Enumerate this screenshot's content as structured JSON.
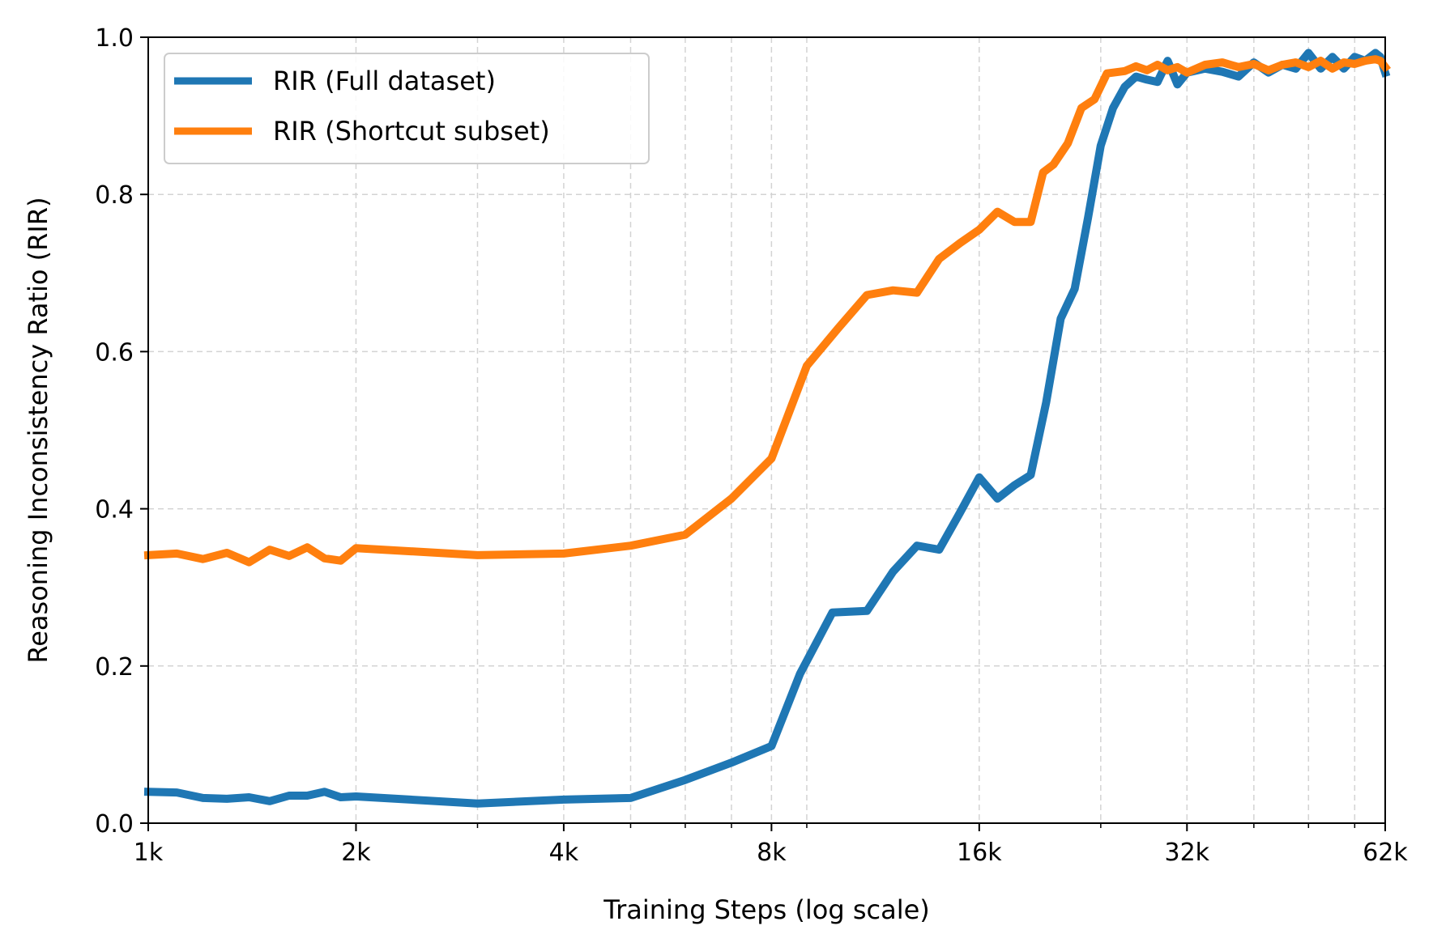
{
  "chart_data": {
    "type": "line",
    "xlabel": "Training Steps (log scale)",
    "ylabel": "Reasoning Inconsistency Ratio (RIR)",
    "x_scale": "log2",
    "xlim": [
      1000,
      62000
    ],
    "ylim": [
      0.0,
      1.0
    ],
    "x_ticks": [
      {
        "value": 1000,
        "label": "1k"
      },
      {
        "value": 2000,
        "label": "2k"
      },
      {
        "value": 4000,
        "label": "4k"
      },
      {
        "value": 8000,
        "label": "8k"
      },
      {
        "value": 16000,
        "label": "16k"
      },
      {
        "value": 32000,
        "label": "32k"
      },
      {
        "value": 62000,
        "label": "62k"
      }
    ],
    "x_minor_gridlines": [
      3000,
      5000,
      6000,
      7000,
      9000,
      24000,
      40000,
      48000,
      56000
    ],
    "y_ticks": [
      {
        "value": 0.0,
        "label": "0.0"
      },
      {
        "value": 0.2,
        "label": "0.2"
      },
      {
        "value": 0.4,
        "label": "0.4"
      },
      {
        "value": 0.6,
        "label": "0.6"
      },
      {
        "value": 0.8,
        "label": "0.8"
      },
      {
        "value": 1.0,
        "label": "1.0"
      }
    ],
    "grid": true,
    "legend_position": "top-left",
    "series": [
      {
        "name": "RIR (Full dataset)",
        "color": "#1f77b4",
        "points": [
          [
            1000,
            0.04
          ],
          [
            1100,
            0.039
          ],
          [
            1200,
            0.032
          ],
          [
            1300,
            0.031
          ],
          [
            1400,
            0.033
          ],
          [
            1500,
            0.028
          ],
          [
            1600,
            0.035
          ],
          [
            1700,
            0.035
          ],
          [
            1800,
            0.04
          ],
          [
            1900,
            0.033
          ],
          [
            2000,
            0.034
          ],
          [
            3000,
            0.025
          ],
          [
            4000,
            0.03
          ],
          [
            5000,
            0.032
          ],
          [
            6000,
            0.055
          ],
          [
            7000,
            0.077
          ],
          [
            8000,
            0.098
          ],
          [
            8800,
            0.19
          ],
          [
            9800,
            0.268
          ],
          [
            11000,
            0.27
          ],
          [
            12000,
            0.32
          ],
          [
            13000,
            0.353
          ],
          [
            14000,
            0.348
          ],
          [
            15000,
            0.395
          ],
          [
            16000,
            0.44
          ],
          [
            17000,
            0.413
          ],
          [
            18000,
            0.43
          ],
          [
            19000,
            0.443
          ],
          [
            20000,
            0.535
          ],
          [
            21000,
            0.642
          ],
          [
            22000,
            0.68
          ],
          [
            23000,
            0.77
          ],
          [
            24000,
            0.862
          ],
          [
            25000,
            0.91
          ],
          [
            26000,
            0.937
          ],
          [
            27000,
            0.95
          ],
          [
            28000,
            0.946
          ],
          [
            29000,
            0.943
          ],
          [
            30000,
            0.97
          ],
          [
            31000,
            0.94
          ],
          [
            32000,
            0.955
          ],
          [
            34000,
            0.96
          ],
          [
            36000,
            0.956
          ],
          [
            38000,
            0.95
          ],
          [
            40000,
            0.968
          ],
          [
            42000,
            0.955
          ],
          [
            44000,
            0.965
          ],
          [
            46000,
            0.96
          ],
          [
            48000,
            0.98
          ],
          [
            50000,
            0.96
          ],
          [
            52000,
            0.975
          ],
          [
            54000,
            0.96
          ],
          [
            56000,
            0.975
          ],
          [
            58000,
            0.97
          ],
          [
            60000,
            0.98
          ],
          [
            61000,
            0.975
          ],
          [
            62000,
            0.955
          ]
        ]
      },
      {
        "name": "RIR (Shortcut subset)",
        "color": "#ff7f0e",
        "points": [
          [
            1000,
            0.341
          ],
          [
            1100,
            0.343
          ],
          [
            1200,
            0.336
          ],
          [
            1300,
            0.344
          ],
          [
            1400,
            0.332
          ],
          [
            1500,
            0.348
          ],
          [
            1600,
            0.34
          ],
          [
            1700,
            0.351
          ],
          [
            1800,
            0.337
          ],
          [
            1900,
            0.334
          ],
          [
            2000,
            0.35
          ],
          [
            3000,
            0.341
          ],
          [
            4000,
            0.343
          ],
          [
            5000,
            0.353
          ],
          [
            6000,
            0.367
          ],
          [
            7000,
            0.413
          ],
          [
            8000,
            0.464
          ],
          [
            9000,
            0.582
          ],
          [
            10000,
            0.63
          ],
          [
            11000,
            0.672
          ],
          [
            12000,
            0.678
          ],
          [
            13000,
            0.675
          ],
          [
            14000,
            0.718
          ],
          [
            15000,
            0.738
          ],
          [
            16000,
            0.755
          ],
          [
            17000,
            0.778
          ],
          [
            18000,
            0.765
          ],
          [
            19000,
            0.765
          ],
          [
            19800,
            0.828
          ],
          [
            20500,
            0.838
          ],
          [
            21500,
            0.865
          ],
          [
            22500,
            0.91
          ],
          [
            23500,
            0.921
          ],
          [
            24500,
            0.954
          ],
          [
            26000,
            0.957
          ],
          [
            27000,
            0.963
          ],
          [
            28000,
            0.958
          ],
          [
            29000,
            0.965
          ],
          [
            30000,
            0.958
          ],
          [
            31000,
            0.962
          ],
          [
            32000,
            0.955
          ],
          [
            34000,
            0.965
          ],
          [
            36000,
            0.968
          ],
          [
            38000,
            0.962
          ],
          [
            40000,
            0.966
          ],
          [
            42000,
            0.958
          ],
          [
            44000,
            0.965
          ],
          [
            46000,
            0.968
          ],
          [
            48000,
            0.962
          ],
          [
            50000,
            0.97
          ],
          [
            52000,
            0.96
          ],
          [
            54000,
            0.968
          ],
          [
            56000,
            0.966
          ],
          [
            58000,
            0.97
          ],
          [
            60000,
            0.972
          ],
          [
            61000,
            0.97
          ],
          [
            62000,
            0.962
          ]
        ]
      }
    ]
  }
}
